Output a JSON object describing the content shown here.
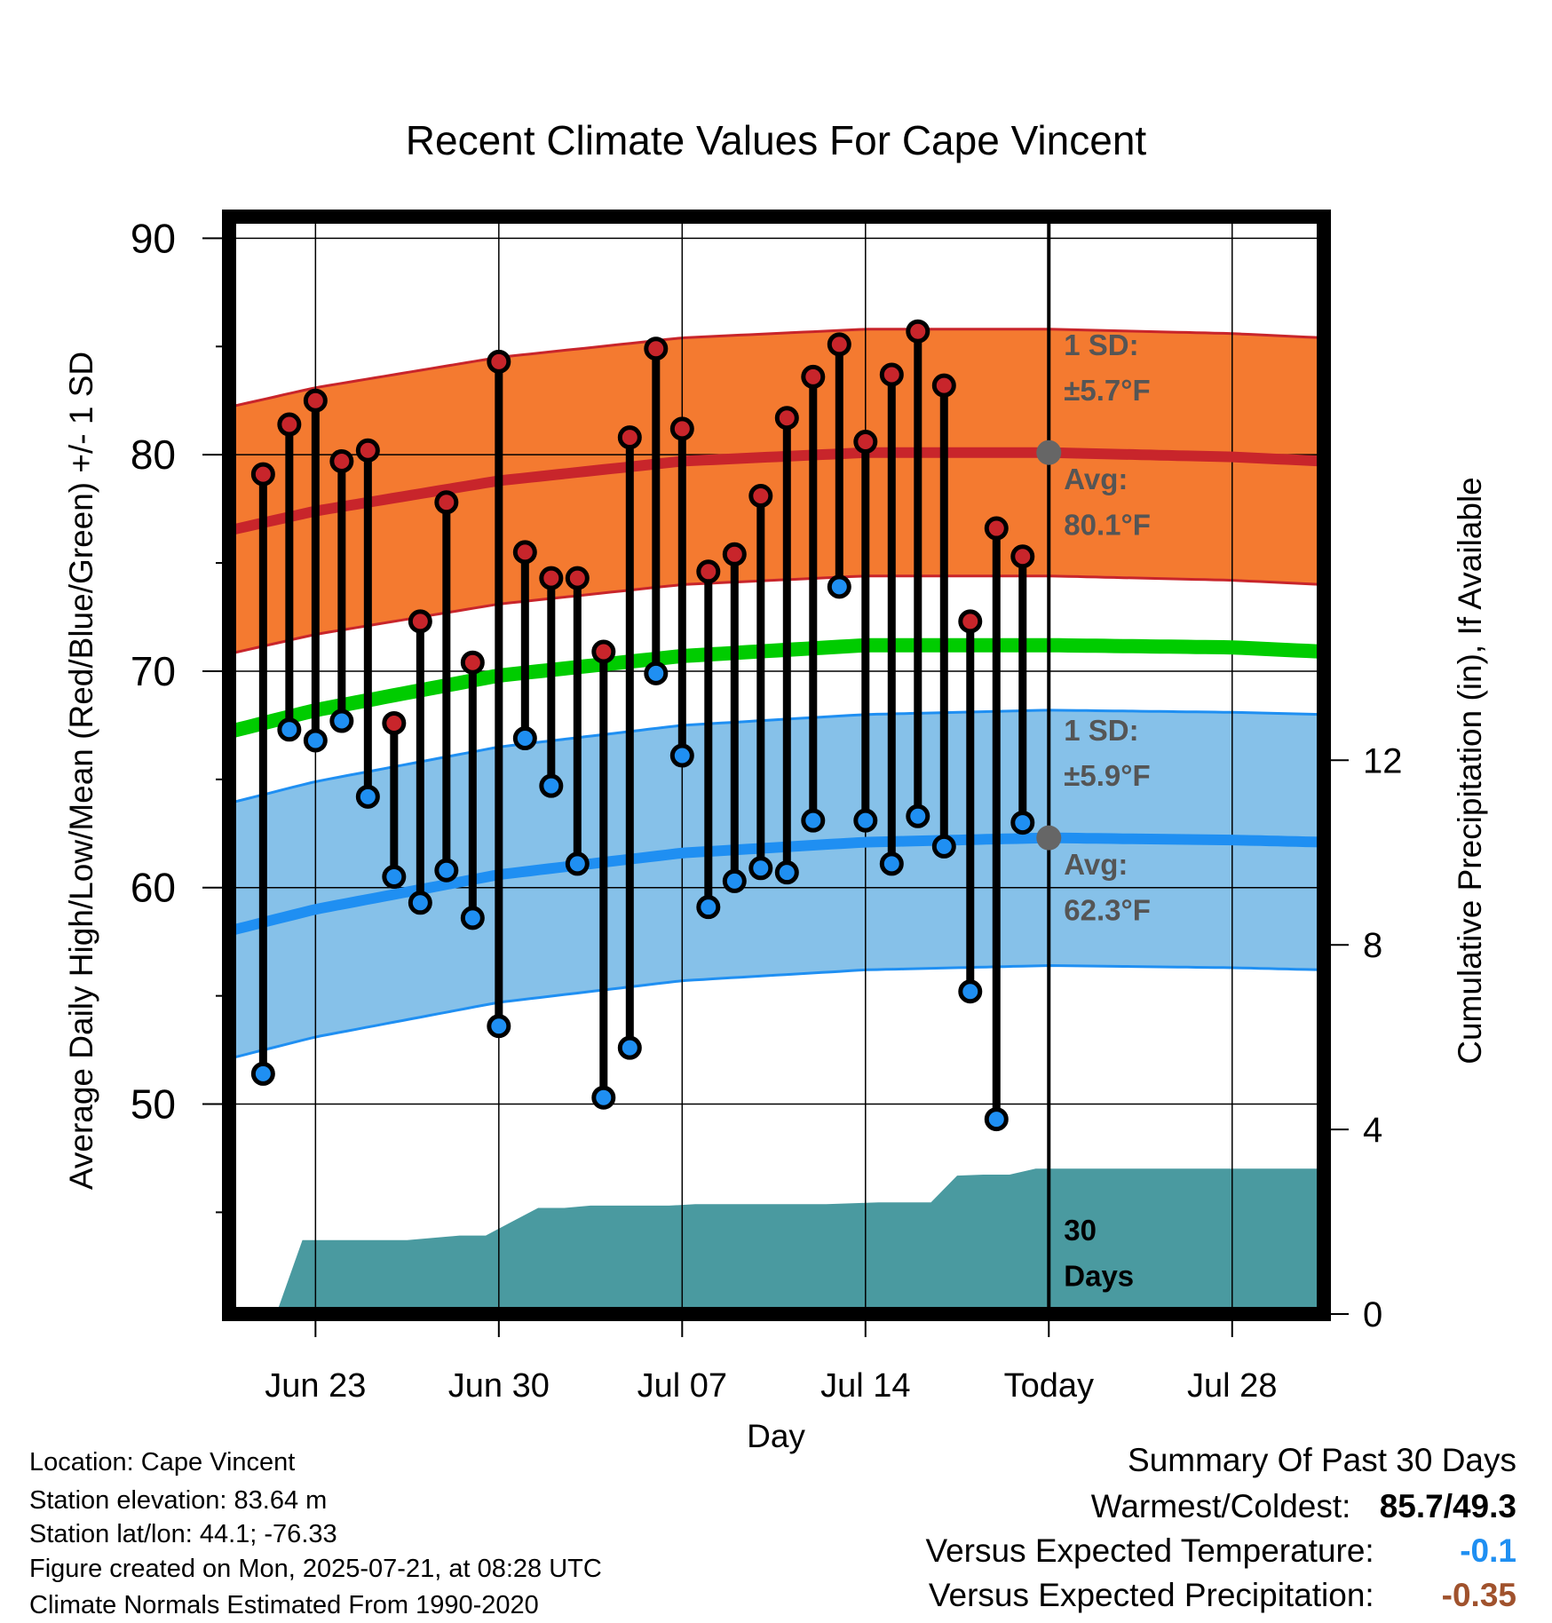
{
  "chart_data": {
    "type": "line",
    "title": "Recent Climate Values For Cape Vincent",
    "xlabel": "Day",
    "ylabel": "Average Daily High/Low/Mean (Red/Blue/Green) +/- 1 SD",
    "y2label": "Cumulative Precipitation (in), If Available",
    "x_ticks": [
      {
        "day": 2,
        "label": "Jun 23"
      },
      {
        "day": 9,
        "label": "Jun 30"
      },
      {
        "day": 16,
        "label": "Jul 07"
      },
      {
        "day": 23,
        "label": "Jul 14"
      },
      {
        "day": 30,
        "label": "Today"
      },
      {
        "day": 37,
        "label": "Jul 28"
      }
    ],
    "xlim": [
      -1.3,
      40.5
    ],
    "ylim": [
      40.3,
      91
    ],
    "y_ticks": [
      50,
      60,
      70,
      80,
      90
    ],
    "y2lim": [
      0,
      23.78
    ],
    "y2_ticks": [
      0,
      4,
      8,
      12
    ],
    "today_day": 30,
    "x_day_start": 0,
    "x_day_step": 1,
    "highs": [
      79.1,
      81.4,
      82.5,
      79.7,
      80.2,
      67.6,
      72.3,
      77.8,
      70.4,
      84.3,
      75.5,
      74.3,
      74.3,
      70.9,
      80.8,
      84.9,
      81.2,
      74.6,
      75.4,
      78.1,
      81.7,
      83.6,
      85.1,
      80.6,
      83.7,
      85.7,
      83.2,
      72.3,
      76.6,
      75.3
    ],
    "lows": [
      51.4,
      67.3,
      66.8,
      67.7,
      64.2,
      60.5,
      59.3,
      60.8,
      58.6,
      53.6,
      66.9,
      64.7,
      61.1,
      50.3,
      52.6,
      69.9,
      66.1,
      59.1,
      60.3,
      60.9,
      60.7,
      63.1,
      73.9,
      63.1,
      61.1,
      63.3,
      61.9,
      55.2,
      49.3,
      63.0
    ],
    "normal_days": [
      -1.3,
      2,
      9,
      16,
      23,
      30,
      37,
      40.5
    ],
    "normal_high": [
      76.5,
      77.4,
      78.8,
      79.7,
      80.1,
      80.1,
      79.9,
      79.7
    ],
    "normal_low": [
      58.0,
      59.0,
      60.6,
      61.6,
      62.1,
      62.3,
      62.2,
      62.1
    ],
    "normal_mean": [
      67.2,
      68.2,
      69.8,
      70.7,
      71.2,
      71.2,
      71.1,
      70.9
    ],
    "sd_high": 5.7,
    "sd_low": 5.9,
    "precip_days": [
      0.5,
      1.5,
      5.5,
      7.5,
      8.5,
      9.5,
      10.5,
      11.5,
      12.5,
      13.5,
      14.5,
      15.5,
      16.5,
      17.5,
      18.5,
      19.5,
      20.5,
      21.5,
      22.5,
      23.5,
      24.5,
      25.5,
      26.5,
      27.5,
      28.5,
      29.5,
      40.5
    ],
    "precip_cum": [
      0.0,
      1.6,
      1.6,
      1.7,
      1.7,
      2.0,
      2.3,
      2.3,
      2.35,
      2.35,
      2.35,
      2.35,
      2.38,
      2.38,
      2.38,
      2.38,
      2.38,
      2.38,
      2.4,
      2.42,
      2.42,
      2.42,
      3.0,
      3.02,
      3.02,
      3.15,
      3.15
    ],
    "annotations": {
      "high_sd_label": "1 SD:",
      "high_sd_value": "±5.7°F",
      "high_avg_label": "Avg:",
      "high_avg_value": "80.1°F",
      "low_sd_label": "1 SD:",
      "low_sd_value": "±5.9°F",
      "low_avg_label": "Avg:",
      "low_avg_value": "62.3°F",
      "days_label_1": "30",
      "days_label_2": "Days"
    },
    "colors": {
      "high": "#c8252b",
      "high_band": "#f47a30",
      "low": "#1f8ff2",
      "low_band": "#86c1e9",
      "mean": "#00cc00",
      "precip": "#4a9aa0",
      "annotation": "#555555",
      "marker_today": "#666666"
    }
  },
  "info": {
    "location": "Location: Cape Vincent",
    "elevation": "Station elevation: 83.64 m",
    "latlon": "Station lat/lon: 44.1; -76.33",
    "created": "Figure created on Mon, 2025-07-21, at 08:28 UTC",
    "normals": "Climate Normals Estimated From 1990-2020"
  },
  "summary": {
    "heading": "Summary Of Past 30 Days",
    "warm_cold_label": "Warmest/Coldest:",
    "warm_cold_value": "85.7/49.3",
    "temp_label": "Versus Expected Temperature:",
    "temp_value": "-0.1",
    "temp_color": "#1f8ff2",
    "precip_label": "Versus Expected Precipitation:",
    "precip_value": "-0.35",
    "precip_color": "#a0522d"
  }
}
